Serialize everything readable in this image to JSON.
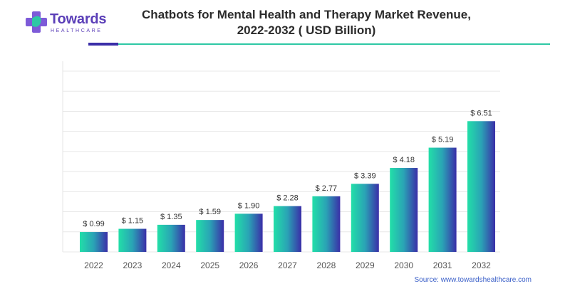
{
  "header": {
    "brand_name": "Towards",
    "brand_sub": "HEALTHCARE",
    "title_line1": "Chatbots for Mental Health and Therapy Market Revenue,",
    "title_line2": "2022-2032 ( USD Billion)",
    "accent_color": "#3a2ea8",
    "rule_color": "#2ec8a5"
  },
  "source": "Source: www.towardshealthcare.com",
  "chart_data": {
    "type": "bar",
    "title": "Chatbots for Mental Health and Therapy Market Revenue, 2022-2032 ( USD Billion)",
    "categories": [
      "2022",
      "2023",
      "2024",
      "2025",
      "2026",
      "2027",
      "2028",
      "2029",
      "2030",
      "2031",
      "2032"
    ],
    "values": [
      0.99,
      1.15,
      1.35,
      1.59,
      1.9,
      2.28,
      2.77,
      3.39,
      4.18,
      5.19,
      6.51
    ],
    "value_labels": [
      "$ 0.99",
      "$ 1.15",
      "$ 1.35",
      "$ 1.59",
      "$ 1.90",
      "$ 2.28",
      "$ 2.77",
      "$ 3.39",
      "$ 4.18",
      "$ 5.19",
      "$ 6.51"
    ],
    "xlabel": "",
    "ylabel": "",
    "ylim": [
      0,
      9
    ],
    "grid": true,
    "legend": "none",
    "bar_gradient_colors": [
      "#22dfa8",
      "#2aa3b5",
      "#3a2ea8"
    ]
  }
}
